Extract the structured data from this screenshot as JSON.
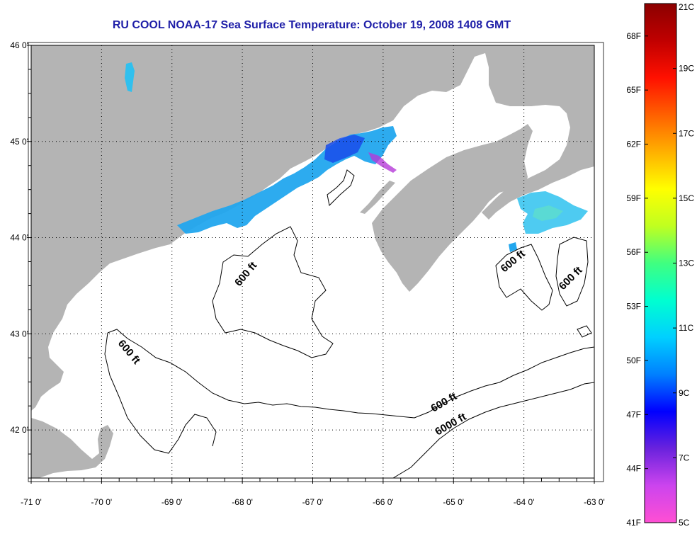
{
  "title": "RU COOL  NOAA-17  Sea Surface Temperature:  October 19, 2008 1408 GMT",
  "colors": {
    "land": "#b4b4b4",
    "water": "#ffffff",
    "title": "#1f1fa8",
    "contour": "#000000",
    "cloud": "#ffffff",
    "colorbar_stops": [
      "#ff4fd3",
      "#cc44ee",
      "#6a22dd",
      "#0000ff",
      "#0080ff",
      "#00d0ff",
      "#00ffd0",
      "#40ff80",
      "#c0ff20",
      "#ffff00",
      "#ffb000",
      "#ff6000",
      "#ff1000",
      "#c00000",
      "#8b0000"
    ]
  },
  "map": {
    "lon_range": [
      -71,
      -63
    ],
    "lat_range": [
      41.5,
      46
    ],
    "lon_labels": [
      "-71 0'",
      "-70 0'",
      "-69 0'",
      "-68 0'",
      "-67 0'",
      "-66 0'",
      "-65 0'",
      "-64 0'",
      "-63 0'"
    ],
    "lat_labels": [
      "46 0'",
      "45 0'",
      "44 0'",
      "43 0'",
      "42 0'"
    ],
    "grid": "dotted",
    "contour_labels": [
      "600 ft",
      "600 ft",
      "600 ft",
      "600 ft",
      "600 ft",
      "6000 ft"
    ]
  },
  "colorbar": {
    "celsius_labels": [
      "21C",
      "19C",
      "17C",
      "15C",
      "13C",
      "11C",
      "9C",
      "7C",
      "5C"
    ],
    "fahrenheit_labels": [
      "68F",
      "65F",
      "62F",
      "59F",
      "56F",
      "53F",
      "50F",
      "47F",
      "44F",
      "41F"
    ]
  }
}
